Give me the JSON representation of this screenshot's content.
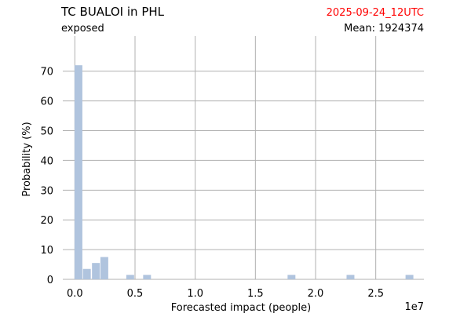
{
  "chart_data": {
    "type": "bar",
    "title": "TC BUALOI in PHL",
    "subtitle": "exposed",
    "date_label": "2025-09-24_12UTC",
    "mean_label": "Mean: 1924374",
    "xlabel": "Forecasted impact (people)",
    "ylabel": "Probability (%)",
    "x_offset_label": "1e7",
    "xlim": [
      -0.1,
      2.9
    ],
    "ylim": [
      0,
      76
    ],
    "x_ticks": [
      0.0,
      0.5,
      1.0,
      1.5,
      2.0,
      2.5
    ],
    "x_tick_labels": [
      "0.0",
      "0.5",
      "1.0",
      "1.5",
      "2.0",
      "2.5"
    ],
    "y_ticks": [
      0,
      10,
      20,
      30,
      40,
      50,
      60,
      70
    ],
    "y_tick_labels": [
      "0",
      "10",
      "20",
      "30",
      "40",
      "50",
      "60",
      "70"
    ],
    "bar_width": 0.065,
    "bars": [
      {
        "x": 0.03,
        "value": 72
      },
      {
        "x": 0.1,
        "value": 3.5
      },
      {
        "x": 0.175,
        "value": 5.5
      },
      {
        "x": 0.245,
        "value": 7.5
      },
      {
        "x": 0.46,
        "value": 1.5
      },
      {
        "x": 0.6,
        "value": 1.5
      },
      {
        "x": 1.8,
        "value": 1.5
      },
      {
        "x": 2.29,
        "value": 1.5
      },
      {
        "x": 2.78,
        "value": 1.5
      }
    ],
    "grid": true,
    "colors": {
      "bar": "#b0c4de",
      "grid": "#b0b0b0",
      "date_text": "#ff0000",
      "text": "#000000"
    }
  }
}
